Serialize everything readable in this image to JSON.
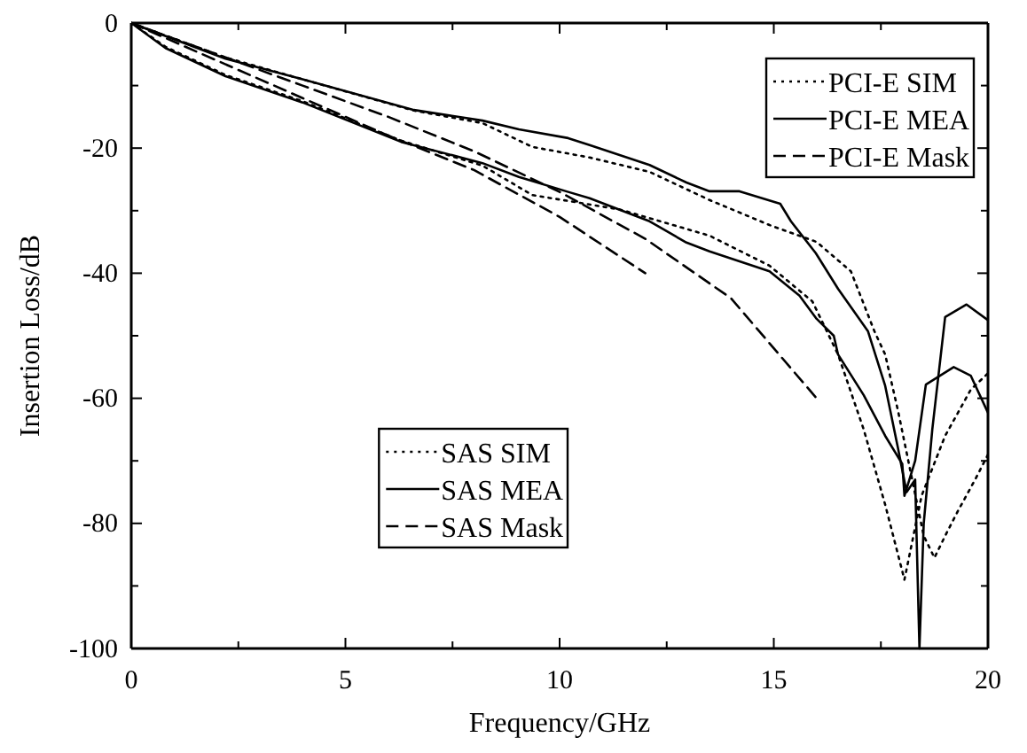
{
  "chart_data": {
    "type": "line",
    "xlabel": "Frequency/GHz",
    "ylabel": "Insertion Loss/dB",
    "xlim": [
      0,
      20
    ],
    "ylim": [
      -100,
      0
    ],
    "xticks": [
      0,
      {
        "value": 2.5,
        "label": null
      },
      5,
      {
        "value": 7.5,
        "label": null
      },
      10,
      {
        "value": 12.5,
        "label": null
      },
      15,
      {
        "value": 17.5,
        "label": null
      },
      20
    ],
    "yticks": [
      -100,
      {
        "value": -90,
        "label": null
      },
      -80,
      {
        "value": -70,
        "label": null
      },
      -60,
      {
        "value": -50,
        "label": null
      },
      -40,
      {
        "value": -30,
        "label": null
      },
      -20,
      {
        "value": -10,
        "label": null
      },
      0
    ],
    "legend": "top right",
    "grid": false,
    "marker": "none",
    "series": [
      {
        "name": "PCI-E SIM",
        "color": "#000000",
        "line_style": "dotted",
        "x": [
          0,
          2.2,
          4,
          6.6,
          8.2,
          9.36,
          10.7,
          12.1,
          13.5,
          14.9,
          16,
          16.8,
          17.35,
          17.6,
          17.9,
          18.2,
          18.5,
          18.75,
          19,
          19.3,
          19.7,
          20
        ],
        "values": [
          0,
          -5.5,
          -9,
          -14,
          -16,
          -19.8,
          -21.5,
          -23.8,
          -28.3,
          -32.3,
          -35,
          -39.7,
          -49.3,
          -53,
          -62,
          -72,
          -82,
          -85.5,
          -82,
          -78,
          -73,
          -69
        ]
      },
      {
        "name": "PCI-E MEA",
        "color": "#000000",
        "line_style": "solid",
        "x": [
          0,
          2.2,
          4,
          6.6,
          8.2,
          9.05,
          10.2,
          10.7,
          12.1,
          12.96,
          13.5,
          14.2,
          15.15,
          15.4,
          15.98,
          16.5,
          17.2,
          17.6,
          17.9,
          18.1,
          18.3,
          18.4,
          18.5,
          18.7,
          19,
          19.5,
          20
        ],
        "values": [
          0,
          -5.7,
          -9,
          -13.9,
          -15.6,
          -17,
          -18.4,
          -19.5,
          -22.7,
          -25.5,
          -26.9,
          -26.9,
          -28.9,
          -31.7,
          -36.8,
          -42.5,
          -49.3,
          -58,
          -68,
          -75,
          -73,
          -100,
          -80,
          -65,
          -47,
          -45,
          -47.5
        ]
      },
      {
        "name": "PCI-E Mask",
        "color": "#000000",
        "line_style": "dashed",
        "x": [
          0,
          2,
          4,
          6,
          8,
          10,
          12,
          14,
          16
        ],
        "values": [
          0,
          -5,
          -10,
          -15,
          -20.5,
          -27,
          -34.5,
          -44,
          -60
        ]
      },
      {
        "name": "SAS SIM",
        "color": "#000000",
        "line_style": "dotted",
        "x": [
          0,
          0.8,
          2.2,
          4,
          6.3,
          8.2,
          9.36,
          11.4,
          13.5,
          14.9,
          15.9,
          16.5,
          17.1,
          17.6,
          18.05,
          18.45,
          19,
          19.6,
          20
        ],
        "values": [
          0,
          -3.8,
          -8.3,
          -12.5,
          -18.8,
          -22.8,
          -27.5,
          -29.8,
          -34,
          -38.8,
          -44.5,
          -53,
          -65,
          -77,
          -89,
          -75.6,
          -66,
          -58.6,
          -56
        ]
      },
      {
        "name": "SAS MEA",
        "color": "#000000",
        "line_style": "solid",
        "x": [
          0,
          0.8,
          2.2,
          4,
          6.3,
          8.2,
          9.05,
          10.2,
          10.7,
          12.1,
          12.96,
          13.5,
          14.9,
          15.6,
          16,
          16.4,
          16.5,
          17.1,
          17.6,
          18,
          18.05,
          18.3,
          18.55,
          19.2,
          19.6,
          20
        ],
        "values": [
          0,
          -4,
          -8.5,
          -12.7,
          -19,
          -22.4,
          -24.6,
          -27,
          -28,
          -31.7,
          -35.1,
          -36.5,
          -39.7,
          -43.6,
          -47.3,
          -50,
          -53,
          -59.5,
          -66,
          -70.5,
          -75.6,
          -70,
          -57.8,
          -55,
          -56.4,
          -62.3
        ]
      },
      {
        "name": "SAS Mask",
        "color": "#000000",
        "line_style": "dashed",
        "x": [
          0,
          2,
          4,
          6,
          8,
          10,
          12
        ],
        "values": [
          0,
          -6,
          -12,
          -18,
          -23.5,
          -31,
          -40
        ]
      }
    ]
  }
}
